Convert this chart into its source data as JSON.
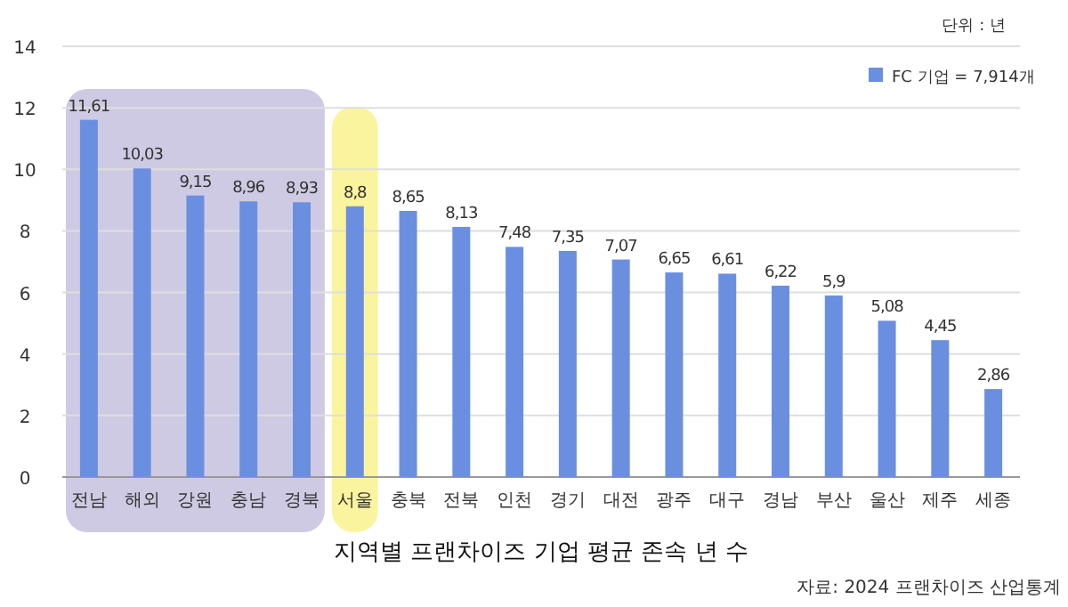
{
  "chart_data": {
    "type": "bar",
    "xlabel": "지역별 프랜차이즈 기업 평균 존속 년 수",
    "categories": [
      "전남",
      "해외",
      "강원",
      "충남",
      "경북",
      "서울",
      "충북",
      "전북",
      "인천",
      "경기",
      "대전",
      "광주",
      "대구",
      "경남",
      "부산",
      "울산",
      "제주",
      "세종"
    ],
    "series": [
      {
        "name": "FC 기업 = 7,914개",
        "color": "#6b8fe0",
        "values": [
          11.61,
          10.03,
          9.15,
          8.96,
          8.93,
          8.8,
          8.65,
          8.13,
          7.48,
          7.35,
          7.07,
          6.65,
          6.61,
          6.22,
          5.9,
          5.08,
          4.45,
          2.86
        ],
        "value_labels": [
          "11,61",
          "10,03",
          "9,15",
          "8,96",
          "8,93",
          "8,8",
          "8,65",
          "8,13",
          "7,48",
          "7,35",
          "7,07",
          "6,65",
          "6,61",
          "6,22",
          "5,9",
          "5,08",
          "4,45",
          "2,86"
        ]
      }
    ],
    "ylim": [
      0,
      14
    ],
    "yticks": [
      0,
      2,
      4,
      6,
      8,
      10,
      12,
      14
    ],
    "grid": "y",
    "legend": "top right",
    "bands": [
      {
        "axis": "x",
        "from": "전남",
        "to": "경북",
        "color": "#cfcae3"
      },
      {
        "axis": "x",
        "from": "서울",
        "to": "서울",
        "color": "#fbf49e"
      }
    ],
    "annotations": [
      "단위 : 년",
      "자료:  2024 프랜차이즈 산업통계"
    ]
  }
}
